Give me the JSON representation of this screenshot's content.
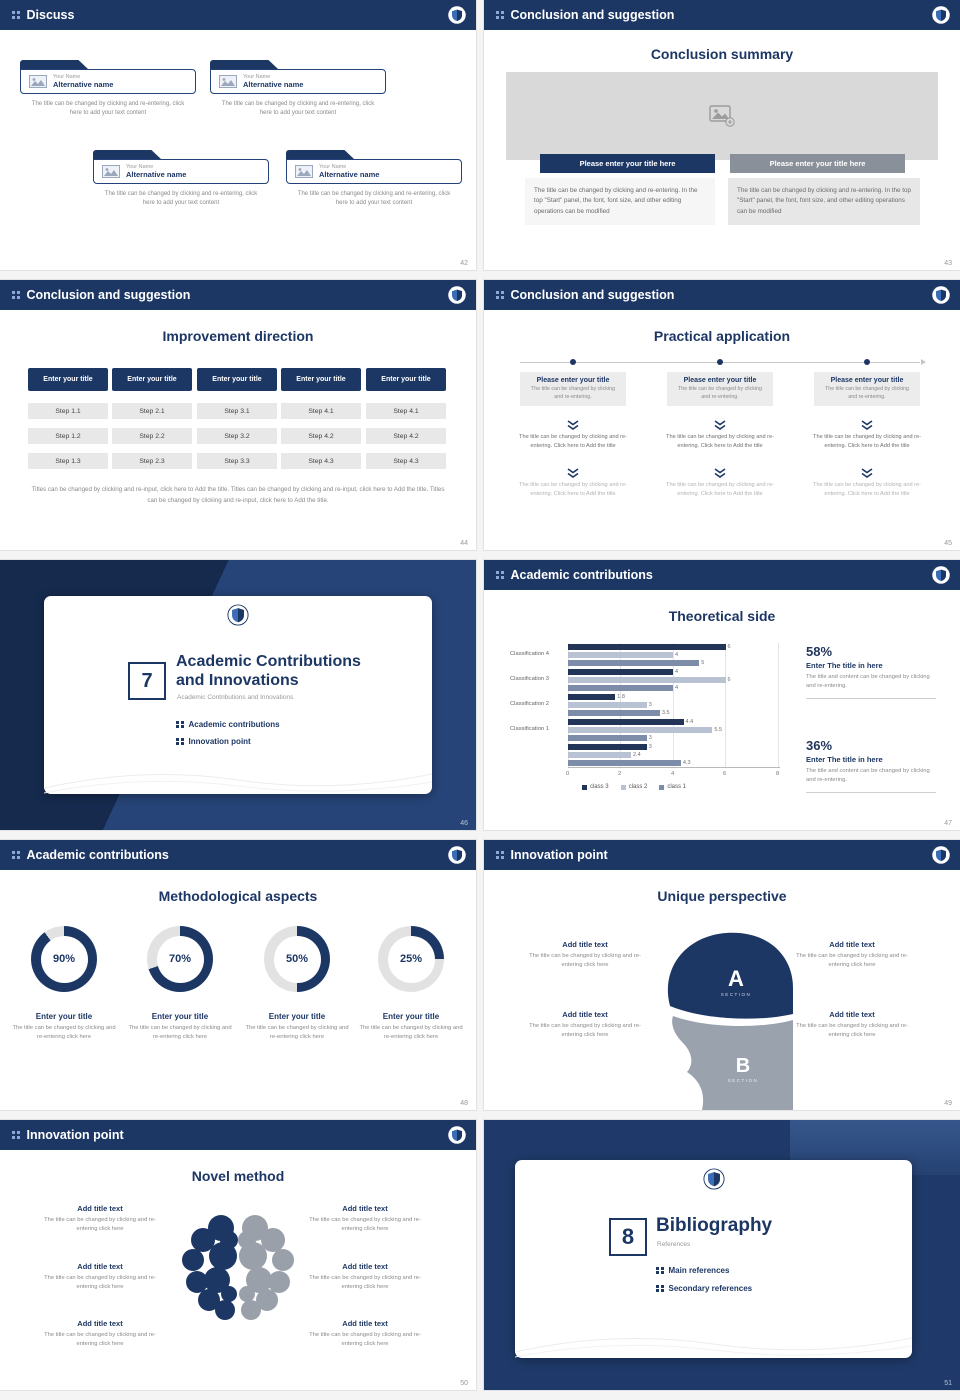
{
  "theme": {
    "navy": "#1d3765",
    "navy_dark": "#15294d",
    "light_blue": "#8aa9d6",
    "text_gray": "#8a8a8a",
    "btn_gray": "#8a9099",
    "bar_class3": "#223558",
    "bar_class2": "#b9c2d2",
    "bar_class1": "#7c8ca9"
  },
  "slides": {
    "s42": {
      "page": "42",
      "header": "Discuss",
      "cards": [
        {
          "name": "Your Name",
          "alt": "Alternative name",
          "text": "The title can be changed by clicking and re-entering, click here to add your text content"
        },
        {
          "name": "Your Name",
          "alt": "Alternative name",
          "text": "The title can be changed by clicking and re-entering, click here to add your text content"
        },
        {
          "name": "Your Name",
          "alt": "Alternative name",
          "text": "The title can be changed by clicking and re-entering, click here to add your text content"
        },
        {
          "name": "Your Name",
          "alt": "Alternative name",
          "text": "The title can be changed by clicking and re-entering, click here to add your text content"
        }
      ]
    },
    "s43": {
      "page": "43",
      "header": "Conclusion and suggestion",
      "title": "Conclusion summary",
      "button_left": "Please enter your title here",
      "button_right": "Please enter your title here",
      "body_left": "The title can be changed by clicking and re-entering. In the top \"Start\" panel, the font, font size, and other editing operations can be modified",
      "body_right": "The title can be changed by clicking and re-entering. In the top \"Start\" panel, the font, font size, and other editing operations can be modified"
    },
    "s44": {
      "page": "44",
      "header": "Conclusion and suggestion",
      "title": "Improvement direction",
      "columns": [
        {
          "title": "Enter your title",
          "steps": [
            "Step 1.1",
            "Step 1.2",
            "Step 1.3"
          ]
        },
        {
          "title": "Enter your title",
          "steps": [
            "Step 2.1",
            "Step 2.2",
            "Step 2.3"
          ]
        },
        {
          "title": "Enter your title",
          "steps": [
            "Step 3.1",
            "Step 3.2",
            "Step 3.3"
          ]
        },
        {
          "title": "Enter your title",
          "steps": [
            "Step 4.1",
            "Step 4.2",
            "Step 4.3"
          ]
        },
        {
          "title": "Enter your title",
          "steps": [
            "Step 4.1",
            "Step 4.2",
            "Step 4.3"
          ]
        }
      ],
      "caption": "Titles can be changed by clicking and re-input, click here to Add the title. Titles can be changed by clicking and re-input, click here to Add the title. Titles can be changed by clicking and re-input, click here to Add the title."
    },
    "s45": {
      "page": "45",
      "header": "Conclusion and suggestion",
      "title": "Practical application",
      "columns": [
        {
          "head": "Please enter your title",
          "sub": "The title can be changed by clicking and re-entering.",
          "mid": "The title can be changed by clicking and re-entering. Click here to Add the title",
          "bottom": "The title can be changed by clicking and re-entering. Click here to Add the title"
        },
        {
          "head": "Please enter your title",
          "sub": "The title can be changed by clicking and re-entering.",
          "mid": "The title can be changed by clicking and re-entering. Click here to Add the title",
          "bottom": "The title can be changed by clicking and re-entering. Click here to Add the title"
        },
        {
          "head": "Please enter your title",
          "sub": "The title can be changed by clicking and re-entering.",
          "mid": "The title can be changed by clicking and re-entering. Click here to Add the title",
          "bottom": "The title can be changed by clicking and re-entering. Click here to Add the title"
        }
      ]
    },
    "s46": {
      "page": "46",
      "number": "7",
      "title_line1": "Academic Contributions",
      "title_line2": "and Innovations",
      "subtitle": "Academic Contributions and Innovations",
      "bullets": [
        "Academic contributions",
        "Innovation point"
      ]
    },
    "s47": {
      "page": "47",
      "header": "Academic contributions",
      "title": "Theoretical side",
      "chart_data": {
        "type": "bar",
        "orientation": "horizontal",
        "title": "Theoretical side",
        "categories": [
          "Classification 4",
          "Classification 3",
          "Classification 2",
          "Classification 1",
          ""
        ],
        "series": [
          {
            "name": "class 3",
            "values": [
              6,
              4,
              1.8,
              4.4,
              3
            ]
          },
          {
            "name": "class 2",
            "values": [
              4,
              6,
              3,
              5.5,
              2.4
            ]
          },
          {
            "name": "class 1",
            "values": [
              5,
              4,
              3.5,
              3,
              4.3
            ]
          }
        ],
        "xlim": [
          0,
          8
        ],
        "x_ticks": [
          "0",
          "2",
          "4",
          "6",
          "8"
        ],
        "legend": [
          "class 3",
          "class 2",
          "class 1"
        ],
        "legend_position": "bottom",
        "grid": true
      },
      "stats": [
        {
          "pct": "58%",
          "head": "Enter The title in here",
          "text": "The title and content can be changed by clicking and re-entering."
        },
        {
          "pct": "36%",
          "head": "Enter The title in here",
          "text": "The title and content can be changed by clicking and re-entering."
        }
      ]
    },
    "s48": {
      "page": "48",
      "header": "Academic contributions",
      "title": "Methodological aspects",
      "chart_data": {
        "type": "donut",
        "values": [
          90,
          70,
          50,
          25
        ],
        "labels": [
          "90%",
          "70%",
          "50%",
          "25%"
        ]
      },
      "items": [
        {
          "pct": 90,
          "pct_label": "90%",
          "head": "Enter your title",
          "text": "The title can be changed by clicking and re-entering click here"
        },
        {
          "pct": 70,
          "pct_label": "70%",
          "head": "Enter your title",
          "text": "The title can be changed by clicking and re-entering click here"
        },
        {
          "pct": 50,
          "pct_label": "50%",
          "head": "Enter your title",
          "text": "The title can be changed by clicking and re-entering click here"
        },
        {
          "pct": 25,
          "pct_label": "25%",
          "head": "Enter your title",
          "text": "The title can be changed by clicking and re-entering click here"
        }
      ]
    },
    "s49": {
      "page": "49",
      "header": "Innovation point",
      "title": "Unique perspective",
      "sections": [
        {
          "letter": "A",
          "label": "SECTION"
        },
        {
          "letter": "B",
          "label": "SECTION"
        }
      ],
      "blocks": [
        {
          "head": "Add title text",
          "text": "The title can be changed by clicking and re-entering click here"
        },
        {
          "head": "Add title text",
          "text": "The title can be changed by clicking and re-entering click here"
        },
        {
          "head": "Add title text",
          "text": "The title can be changed by clicking and re-entering click here"
        },
        {
          "head": "Add title text",
          "text": "The title can be changed by clicking and re-entering click here"
        }
      ]
    },
    "s50": {
      "page": "50",
      "header": "Innovation point",
      "title": "Novel method",
      "blocks": [
        {
          "head": "Add title text",
          "text": "The title can be changed by clicking and re-entering click here"
        },
        {
          "head": "Add title text",
          "text": "The title can be changed by clicking and re-entering click here"
        },
        {
          "head": "Add title text",
          "text": "The title can be changed by clicking and re-entering click here"
        },
        {
          "head": "Add title text",
          "text": "The title can be changed by clicking and re-entering click here"
        },
        {
          "head": "Add title text",
          "text": "The title can be changed by clicking and re-entering click here"
        },
        {
          "head": "Add title text",
          "text": "The title can be changed by clicking and re-entering click here"
        }
      ]
    },
    "s51": {
      "page": "51",
      "number": "8",
      "title": "Bibliography",
      "subtitle": "References",
      "bullets": [
        "Main references",
        "Secondary references"
      ]
    }
  }
}
